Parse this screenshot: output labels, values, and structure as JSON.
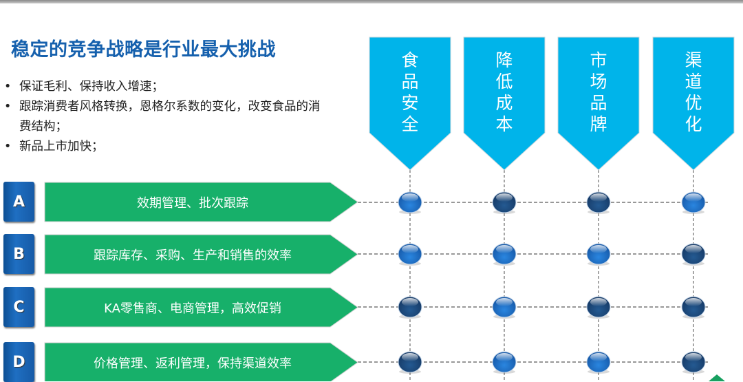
{
  "title": "稳定的竞争战略是行业最大挑战",
  "bullets": [
    "保证毛利、保持收入增速；",
    "跟踪消费者风格转换，恩格尔系数的变化，改变食品的消费结构；",
    "新品上市加快；"
  ],
  "columns": [
    {
      "label": "食品安全"
    },
    {
      "label": "降低成本"
    },
    {
      "label": "市场品牌"
    },
    {
      "label": "渠道优化"
    }
  ],
  "rows": [
    {
      "badge": "A",
      "label": "效期管理、批次跟踪",
      "dots": [
        "light",
        "dark",
        "dark",
        "light"
      ]
    },
    {
      "badge": "B",
      "label": "跟踪库存、采购、生产和销售的效率",
      "dots": [
        "light",
        "light",
        "light",
        "dark"
      ]
    },
    {
      "badge": "C",
      "label": "KA零售商、电商管理，高效促销",
      "dots": [
        "dark",
        "light",
        "dark",
        "dark"
      ]
    },
    {
      "badge": "D",
      "label": "价格管理、返利管理，保持渠道效率",
      "dots": [
        "dark",
        "light",
        "light",
        "dark"
      ]
    }
  ],
  "colors": {
    "title": "#1560ad",
    "pennant": "#00b4ea",
    "arrow": "#17b06a",
    "badge": "#1a62b0",
    "dot_light": "#1f72c8",
    "dot_dark": "#1c4a7e"
  }
}
